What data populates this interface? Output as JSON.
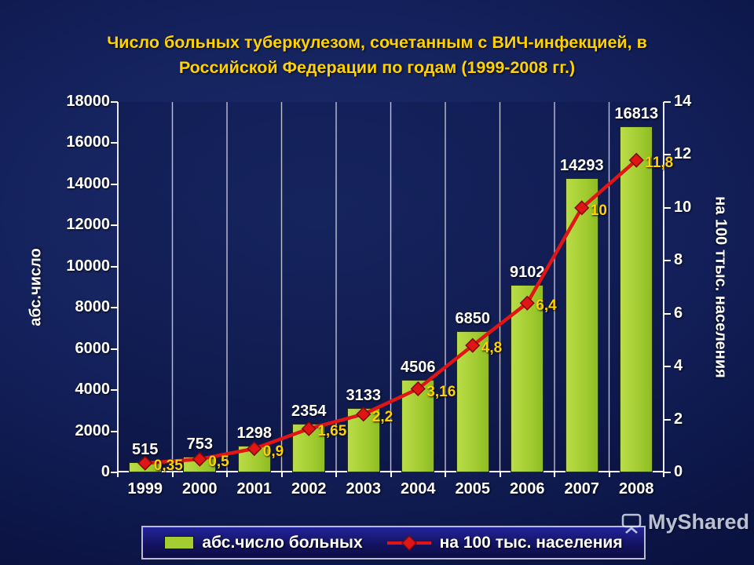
{
  "chart_data": {
    "type": "bar",
    "title": "Число больных туберкулезом, сочетанным с ВИЧ-инфекцией, в Российской Федерации по годам (1999-2008 гг.)",
    "categories": [
      "1999",
      "2000",
      "2001",
      "2002",
      "2003",
      "2004",
      "2005",
      "2006",
      "2007",
      "2008"
    ],
    "series": [
      {
        "name": "абс.число больных",
        "type": "bar",
        "axis": "left",
        "color": "#a4cd32",
        "values": [
          515,
          753,
          1298,
          2354,
          3133,
          4506,
          6850,
          9102,
          14293,
          16813
        ],
        "labels": [
          "515",
          "753",
          "1298",
          "2354",
          "3133",
          "4506",
          "6850",
          "9102",
          "14293",
          "16813"
        ]
      },
      {
        "name": "на 100 тыс. населения",
        "type": "line",
        "axis": "right",
        "color": "#e01515",
        "values": [
          0.35,
          0.5,
          0.9,
          1.65,
          2.2,
          3.16,
          4.8,
          6.4,
          10,
          11.8
        ],
        "labels": [
          "0,35",
          "0,5",
          "0,9",
          "1,65",
          "2,2",
          "3,16",
          "4,8",
          "6,4",
          "10",
          "11,8"
        ]
      }
    ],
    "ylabel_left": "абс.число",
    "ylabel_right": "на 100 ттыс. населения",
    "yaxis_left": {
      "min": 0,
      "max": 18000,
      "ticks": [
        "0",
        "2000",
        "4000",
        "6000",
        "8000",
        "10000",
        "12000",
        "14000",
        "16000",
        "18000"
      ]
    },
    "yaxis_right": {
      "min": 0,
      "max": 14,
      "ticks": [
        "0",
        "2",
        "4",
        "6",
        "8",
        "10",
        "12",
        "14"
      ]
    },
    "grid": "vertical",
    "legend_position": "bottom"
  },
  "legend": {
    "bars": "абс.число больных",
    "line": "на 100 тыс. населения"
  },
  "colors": {
    "background": "#0b1444",
    "title": "#ffd200",
    "bar": "#a4cd32",
    "line": "#e01515",
    "rate_label": "#ffd200",
    "axis_text": "#ffffff"
  },
  "watermark": {
    "text": "MyShared"
  }
}
